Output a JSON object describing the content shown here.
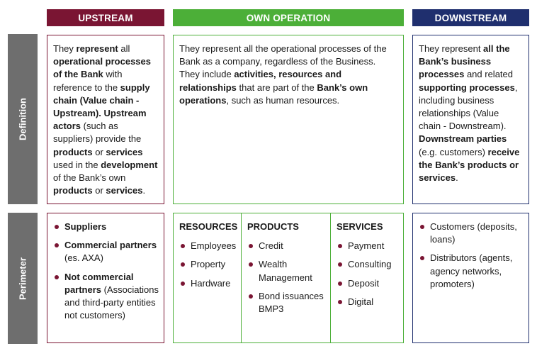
{
  "columns": {
    "upstream": {
      "title": "UPSTREAM",
      "color": "#7a1533"
    },
    "own": {
      "title": "OWN OPERATION",
      "color": "#4caf38"
    },
    "downstream": {
      "title": "DOWNSTREAM",
      "color": "#1f2f6e"
    }
  },
  "rows": {
    "definition": "Definition",
    "perimeter": "Perimeter"
  },
  "definition": {
    "upstream": [
      [
        "They ",
        false
      ],
      [
        "represent",
        true
      ],
      [
        " all ",
        false
      ],
      [
        "operational processes of the Bank",
        true
      ],
      [
        " with reference to the ",
        false
      ],
      [
        "supply chain (Value chain - Upstream).",
        true
      ],
      [
        " ",
        false
      ],
      [
        "Upstream actors",
        true
      ],
      [
        " (such as suppliers) provide the ",
        false
      ],
      [
        "products",
        true
      ],
      [
        " or ",
        false
      ],
      [
        "services",
        true
      ],
      [
        " used in the ",
        false
      ],
      [
        "development",
        true
      ],
      [
        " of the Bank’s own ",
        false
      ],
      [
        "products",
        true
      ],
      [
        " or ",
        false
      ],
      [
        "services",
        true
      ],
      [
        ".",
        false
      ]
    ],
    "own": [
      [
        "They represent all the operational processes of the Bank as a company, regardless of the Business. They include ",
        false
      ],
      [
        "activities, resources and relationships",
        true
      ],
      [
        " that are part of the ",
        false
      ],
      [
        "Bank’s own operations",
        true
      ],
      [
        ", such as human resources.",
        false
      ]
    ],
    "downstream": [
      [
        "They represent ",
        false
      ],
      [
        "all the Bank’s business processes",
        true
      ],
      [
        " and related ",
        false
      ],
      [
        "supporting processes",
        true
      ],
      [
        ", including business relationships (Value chain - Downstream). ",
        false
      ],
      [
        "Downstream parties",
        true
      ],
      [
        " (e.g. customers) ",
        false
      ],
      [
        "receive the Bank’s products or services",
        true
      ],
      [
        ".",
        false
      ]
    ]
  },
  "perimeter": {
    "upstream": [
      {
        "bold": "Suppliers",
        "rest": ""
      },
      {
        "bold": "Commercial partners",
        "rest": " (es. AXA)"
      },
      {
        "bold": "Not commercial partners",
        "rest": " (Associations and third-party entities not customers)"
      }
    ],
    "own": [
      {
        "title": "RESOURCES",
        "items": [
          "Employees",
          "Property",
          "Hardware"
        ]
      },
      {
        "title": "PRODUCTS",
        "items": [
          "Credit",
          "Wealth Management",
          "Bond issuances BMP3"
        ]
      },
      {
        "title": "SERVICES",
        "items": [
          "Payment",
          "Consulting",
          "Deposit",
          "Digital"
        ]
      }
    ],
    "downstream": [
      "Customers (deposits, loans)",
      "Distributors (agents, agency networks, promoters)"
    ]
  }
}
